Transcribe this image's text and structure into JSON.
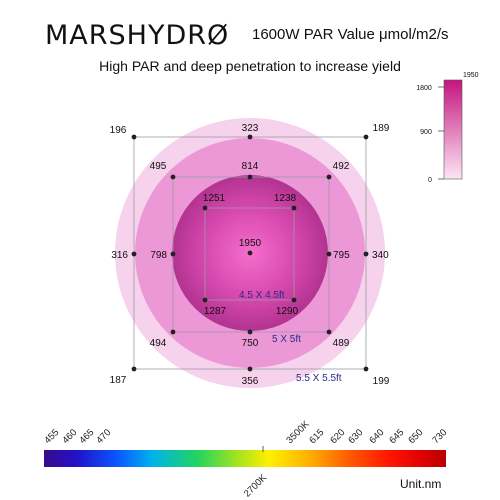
{
  "header": {
    "brand": "MARSHYDRØ",
    "subtitle": "1600W PAR Value μmol/m2/s",
    "tagline": "High PAR and deep penetration to increase yield"
  },
  "colors": {
    "outer_circle": "#f6d2ec",
    "middle_circle": "#ec98d6",
    "inner_circle": "#c0368f",
    "grid_line": "#9a9aa8"
  },
  "par_points": [
    {
      "id": "center",
      "value": "1950"
    },
    {
      "id": "inner-tl",
      "value": "1251"
    },
    {
      "id": "inner-tr",
      "value": "1238"
    },
    {
      "id": "inner-bl",
      "value": "1287"
    },
    {
      "id": "inner-br",
      "value": "1290"
    },
    {
      "id": "mid-top",
      "value": "814"
    },
    {
      "id": "mid-left",
      "value": "798"
    },
    {
      "id": "mid-right",
      "value": "795"
    },
    {
      "id": "mid-bottom",
      "value": "750"
    },
    {
      "id": "mid-tl",
      "value": "495"
    },
    {
      "id": "mid-tr",
      "value": "492"
    },
    {
      "id": "mid-bl",
      "value": "494"
    },
    {
      "id": "mid-br",
      "value": "489"
    },
    {
      "id": "outer-top",
      "value": "323"
    },
    {
      "id": "outer-left",
      "value": "316"
    },
    {
      "id": "outer-right",
      "value": "340"
    },
    {
      "id": "outer-bottom",
      "value": "356"
    },
    {
      "id": "outer-tl",
      "value": "196"
    },
    {
      "id": "outer-tr",
      "value": "189"
    },
    {
      "id": "outer-bl",
      "value": "187"
    },
    {
      "id": "outer-br",
      "value": "199"
    }
  ],
  "coverage": {
    "small": "4.5 X  4.5ft",
    "medium": "5 X 5ft",
    "large": "5.5 X 5.5ft"
  },
  "legend": {
    "max": "1950",
    "ticks": [
      "1800",
      "900",
      "0"
    ],
    "color_top": "#c4157e",
    "color_bottom": "#fde6f4"
  },
  "spectrum": {
    "top_labels": [
      "455",
      "460",
      "465",
      "470",
      "3500K",
      "615",
      "620",
      "630",
      "640",
      "645",
      "650",
      "730"
    ],
    "bottom_label": "2700K",
    "unit": "Unit.nm"
  }
}
